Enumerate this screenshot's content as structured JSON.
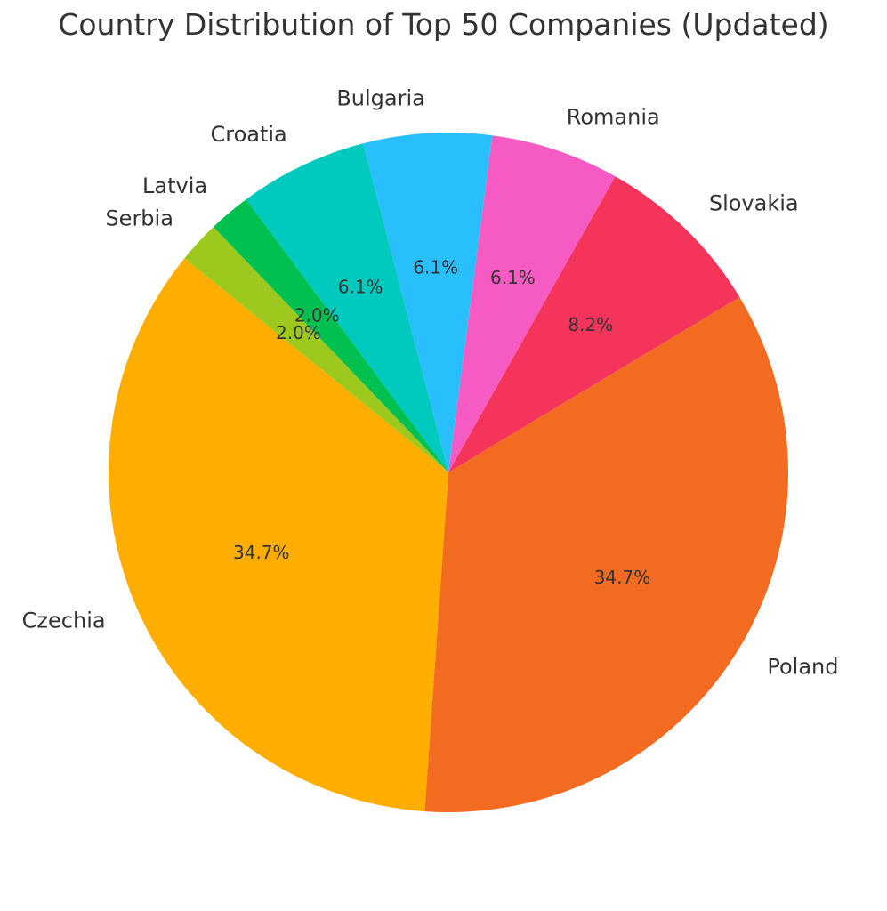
{
  "chart_data": {
    "type": "pie",
    "title": "Country Distribution of Top 50 Companies (Updated)",
    "start_angle_deg": 266,
    "direction": "counterclockwise",
    "slices": [
      {
        "label": "Poland",
        "value": 34.7,
        "pct_label": "34.7%",
        "color": "#F26B21"
      },
      {
        "label": "Slovakia",
        "value": 8.2,
        "pct_label": "8.2%",
        "color": "#F5345B"
      },
      {
        "label": "Romania",
        "value": 6.1,
        "pct_label": "6.1%",
        "color": "#F65BC4"
      },
      {
        "label": "Bulgaria",
        "value": 6.1,
        "pct_label": "6.1%",
        "color": "#29BEFC"
      },
      {
        "label": "Croatia",
        "value": 6.1,
        "pct_label": "6.1%",
        "color": "#00C9BE"
      },
      {
        "label": "Latvia",
        "value": 2.0,
        "pct_label": "2.0%",
        "color": "#00C050"
      },
      {
        "label": "Serbia",
        "value": 2.0,
        "pct_label": "2.0%",
        "color": "#9DC91E"
      },
      {
        "label": "Czechia",
        "value": 34.7,
        "pct_label": "34.7%",
        "color": "#FFAE00"
      }
    ]
  }
}
